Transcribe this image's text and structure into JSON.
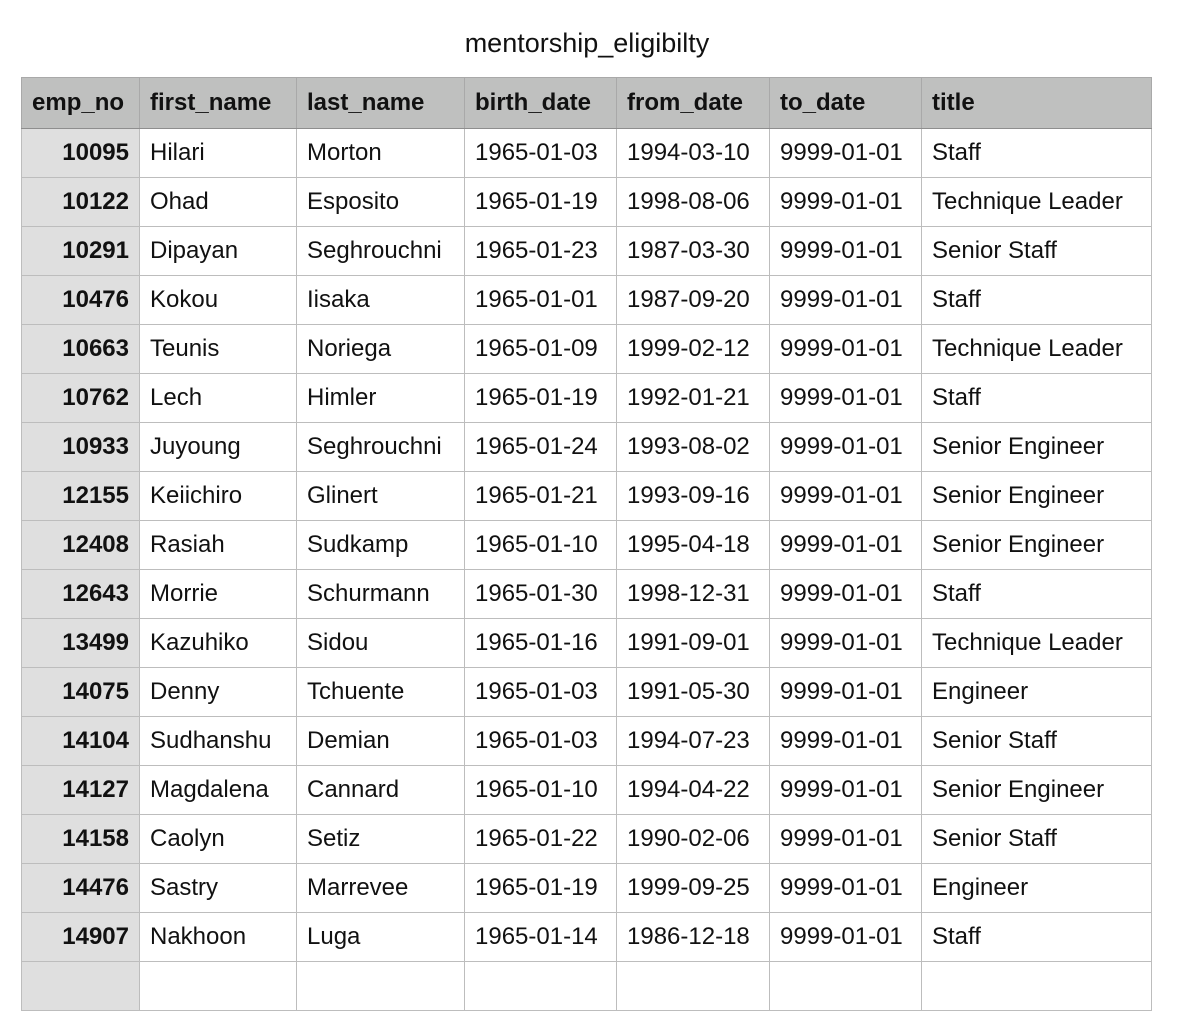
{
  "title": "mentorship_eligibilty",
  "table": {
    "columns": [
      "emp_no",
      "first_name",
      "last_name",
      "birth_date",
      "from_date",
      "to_date",
      "title"
    ],
    "rows": [
      [
        "10095",
        "Hilari",
        "Morton",
        "1965-01-03",
        "1994-03-10",
        "9999-01-01",
        "Staff"
      ],
      [
        "10122",
        "Ohad",
        "Esposito",
        "1965-01-19",
        "1998-08-06",
        "9999-01-01",
        "Technique Leader"
      ],
      [
        "10291",
        "Dipayan",
        "Seghrouchni",
        "1965-01-23",
        "1987-03-30",
        "9999-01-01",
        "Senior Staff"
      ],
      [
        "10476",
        "Kokou",
        "Iisaka",
        "1965-01-01",
        "1987-09-20",
        "9999-01-01",
        "Staff"
      ],
      [
        "10663",
        "Teunis",
        "Noriega",
        "1965-01-09",
        "1999-02-12",
        "9999-01-01",
        "Technique Leader"
      ],
      [
        "10762",
        "Lech",
        "Himler",
        "1965-01-19",
        "1992-01-21",
        "9999-01-01",
        "Staff"
      ],
      [
        "10933",
        "Juyoung",
        "Seghrouchni",
        "1965-01-24",
        "1993-08-02",
        "9999-01-01",
        "Senior Engineer"
      ],
      [
        "12155",
        "Keiichiro",
        "Glinert",
        "1965-01-21",
        "1993-09-16",
        "9999-01-01",
        "Senior Engineer"
      ],
      [
        "12408",
        "Rasiah",
        "Sudkamp",
        "1965-01-10",
        "1995-04-18",
        "9999-01-01",
        "Senior Engineer"
      ],
      [
        "12643",
        "Morrie",
        "Schurmann",
        "1965-01-30",
        "1998-12-31",
        "9999-01-01",
        "Staff"
      ],
      [
        "13499",
        "Kazuhiko",
        "Sidou",
        "1965-01-16",
        "1991-09-01",
        "9999-01-01",
        "Technique Leader"
      ],
      [
        "14075",
        "Denny",
        "Tchuente",
        "1965-01-03",
        "1991-05-30",
        "9999-01-01",
        "Engineer"
      ],
      [
        "14104",
        "Sudhanshu",
        "Demian",
        "1965-01-03",
        "1994-07-23",
        "9999-01-01",
        "Senior Staff"
      ],
      [
        "14127",
        "Magdalena",
        "Cannard",
        "1965-01-10",
        "1994-04-22",
        "9999-01-01",
        "Senior Engineer"
      ],
      [
        "14158",
        "Caolyn",
        "Setiz",
        "1965-01-22",
        "1990-02-06",
        "9999-01-01",
        "Senior Staff"
      ],
      [
        "14476",
        "Sastry",
        "Marrevee",
        "1965-01-19",
        "1999-09-25",
        "9999-01-01",
        "Engineer"
      ],
      [
        "14907",
        "Nakhoon",
        "Luga",
        "1965-01-14",
        "1986-12-18",
        "9999-01-01",
        "Staff"
      ],
      [
        "",
        "",
        "",
        "",
        "",
        "",
        ""
      ]
    ]
  }
}
